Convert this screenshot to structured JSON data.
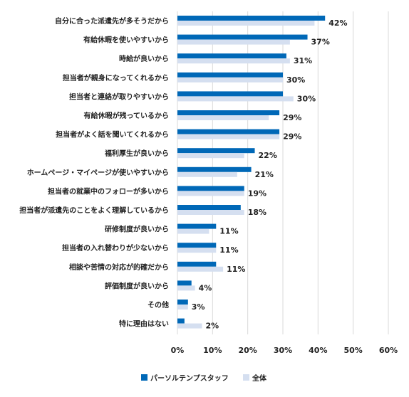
{
  "chart_data": {
    "type": "bar",
    "orientation": "horizontal",
    "categories": [
      "自分に合った派遣先が多そうだから",
      "有給休暇を使いやすいから",
      "時給が良いから",
      "担当者が親身になってくれるから",
      "担当者と連絡が取りやすいから",
      "有給休暇が残っているから",
      "担当者がよく話を聞いてくれるから",
      "福利厚生が良いから",
      "ホームページ・マイページが使いやすいから",
      "担当者の就業中のフォローが多いから",
      "担当者が派遣先のことをよく理解しているから",
      "研修制度が良いから",
      "担当者の入れ替わりが少ないから",
      "相談や苦情の対応が的確だから",
      "評価制度が良いから",
      "その他",
      "特に理由はない"
    ],
    "series": [
      {
        "name": "パーソルテンプスタッフ",
        "color": "#0068b7",
        "values": [
          42,
          37,
          31,
          30,
          30,
          29,
          29,
          22,
          21,
          19,
          18,
          11,
          11,
          11,
          4,
          3,
          2
        ]
      },
      {
        "name": "全体",
        "color": "#d5dff0",
        "values": [
          39,
          32,
          32,
          30,
          33,
          26,
          29,
          19,
          17,
          19,
          19,
          9,
          11,
          13,
          5,
          3,
          7
        ]
      }
    ],
    "data_labels": [
      "42%",
      "37%",
      "31%",
      "30%",
      "30%",
      "29%",
      "29%",
      "22%",
      "21%",
      "19%",
      "18%",
      "11%",
      "11%",
      "11%",
      "4%",
      "3%",
      "2%"
    ],
    "x_ticks": [
      "0%",
      "10%",
      "20%",
      "30%",
      "40%",
      "50%",
      "60%"
    ],
    "xlim": [
      0,
      60
    ],
    "grid": true,
    "legend_position": "bottom",
    "gridline_color": "#d9d9d9"
  }
}
